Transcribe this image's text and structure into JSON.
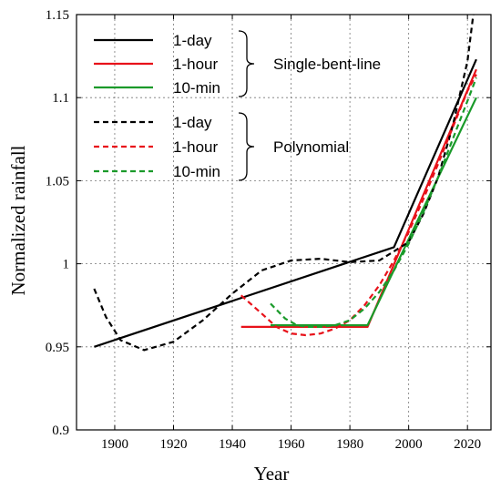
{
  "chart_data": {
    "type": "line",
    "title": "",
    "xlabel": "Year",
    "ylabel": "Normalized rainfall",
    "xlim": [
      1887,
      2028
    ],
    "ylim": [
      0.9,
      1.15
    ],
    "xticks": [
      1900,
      1920,
      1940,
      1960,
      1980,
      2000,
      2020
    ],
    "yticks": [
      0.9,
      0.95,
      1,
      1.05,
      1.1,
      1.15
    ],
    "ytick_labels": [
      "0.9",
      "0.95",
      "1",
      "1.05",
      "1.1",
      "1.15"
    ],
    "grid": true,
    "grid_style": "dotted",
    "legend_position": "top-left",
    "legend_groups": [
      "Single-bent-line",
      "Polynomial"
    ],
    "colors": {
      "1-day": "#000000",
      "1-hour": "#e8121a",
      "10-min": "#1a9a2a"
    },
    "series": [
      {
        "name": "1-day",
        "group": "Single-bent-line",
        "style": "solid",
        "color": "#000000",
        "x": [
          1893,
          1995,
          2023
        ],
        "y": [
          0.95,
          1.01,
          1.123
        ]
      },
      {
        "name": "1-hour",
        "group": "Single-bent-line",
        "style": "solid",
        "color": "#e8121a",
        "x": [
          1943,
          1986,
          2023
        ],
        "y": [
          0.962,
          0.962,
          1.117
        ]
      },
      {
        "name": "10-min",
        "group": "Single-bent-line",
        "style": "solid",
        "color": "#1a9a2a",
        "x": [
          1953,
          1986,
          2023
        ],
        "y": [
          0.963,
          0.963,
          1.1
        ]
      },
      {
        "name": "1-day",
        "group": "Polynomial",
        "style": "dashed",
        "color": "#000000",
        "x": [
          1893,
          1897,
          1902,
          1910,
          1920,
          1930,
          1940,
          1950,
          1960,
          1970,
          1980,
          1990,
          2000,
          2005,
          2010,
          2015,
          2020,
          2022
        ],
        "y": [
          0.985,
          0.968,
          0.954,
          0.948,
          0.953,
          0.966,
          0.982,
          0.996,
          1.002,
          1.003,
          1.001,
          1.002,
          1.013,
          1.03,
          1.052,
          1.083,
          1.122,
          1.15
        ]
      },
      {
        "name": "1-hour",
        "group": "Polynomial",
        "style": "dashed",
        "color": "#e8121a",
        "x": [
          1943,
          1950,
          1955,
          1960,
          1965,
          1970,
          1975,
          1980,
          1985,
          1990,
          1995,
          2000,
          2005,
          2010,
          2015,
          2020,
          2023
        ],
        "y": [
          0.981,
          0.97,
          0.962,
          0.958,
          0.957,
          0.958,
          0.961,
          0.966,
          0.975,
          0.987,
          1.002,
          1.019,
          1.039,
          1.06,
          1.082,
          1.104,
          1.114
        ]
      },
      {
        "name": "10-min",
        "group": "Polynomial",
        "style": "dashed",
        "color": "#1a9a2a",
        "x": [
          1953,
          1958,
          1962,
          1966,
          1970,
          1975,
          1980,
          1985,
          1990,
          1995,
          2000,
          2005,
          2010,
          2015,
          2020,
          2023
        ],
        "y": [
          0.976,
          0.967,
          0.963,
          0.962,
          0.962,
          0.963,
          0.966,
          0.973,
          0.983,
          0.996,
          1.012,
          1.031,
          1.052,
          1.075,
          1.098,
          1.112
        ]
      }
    ]
  }
}
